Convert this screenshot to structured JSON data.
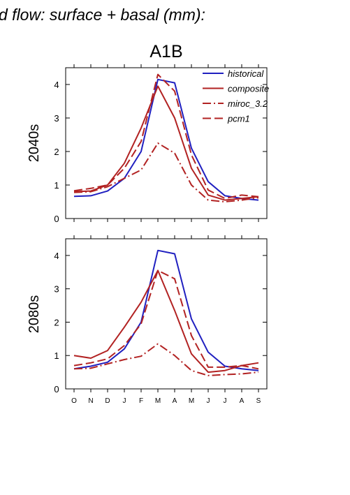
{
  "figure": {
    "suptitle": "d flow: surface + basal (mm):",
    "scenario": "A1B"
  },
  "colors": {
    "historical": "#2020c0",
    "model": "#b22222",
    "axis": "#000000"
  },
  "chart_data": [
    {
      "type": "line",
      "title": "A1B",
      "ylabel": "2040s",
      "ylim": [
        0,
        4.5
      ],
      "yticks": [
        "0",
        "1",
        "2",
        "3",
        "4"
      ],
      "categories": [
        "O",
        "N",
        "D",
        "J",
        "F",
        "M",
        "A",
        "M",
        "J",
        "J",
        "A",
        "S"
      ],
      "legend_position": "top-right",
      "series": [
        {
          "name": "historical",
          "style": "solid",
          "color": "#2020c0",
          "values": [
            0.66,
            0.68,
            0.82,
            1.2,
            2.0,
            4.15,
            4.05,
            2.1,
            1.1,
            0.68,
            0.6,
            0.55
          ]
        },
        {
          "name": "composite",
          "style": "solid",
          "color": "#b22222",
          "values": [
            0.8,
            0.82,
            1.0,
            1.65,
            2.7,
            3.95,
            3.0,
            1.5,
            0.7,
            0.55,
            0.6,
            0.65
          ]
        },
        {
          "name": "miroc_3.2",
          "style": "dashdot",
          "color": "#b22222",
          "values": [
            0.78,
            0.8,
            0.95,
            1.2,
            1.45,
            2.25,
            1.95,
            1.0,
            0.55,
            0.5,
            0.55,
            0.62
          ]
        },
        {
          "name": "pcm1",
          "style": "dashed",
          "color": "#b22222",
          "values": [
            0.83,
            0.9,
            1.0,
            1.5,
            2.3,
            4.3,
            3.8,
            1.9,
            0.85,
            0.6,
            0.7,
            0.65
          ]
        }
      ]
    },
    {
      "type": "line",
      "title": "",
      "ylabel": "2080s",
      "ylim": [
        0,
        4.5
      ],
      "yticks": [
        "0",
        "1",
        "2",
        "3",
        "4"
      ],
      "categories": [
        "O",
        "N",
        "D",
        "J",
        "F",
        "M",
        "A",
        "M",
        "J",
        "J",
        "A",
        "S"
      ],
      "series": [
        {
          "name": "historical",
          "style": "solid",
          "color": "#2020c0",
          "values": [
            0.6,
            0.68,
            0.8,
            1.2,
            2.0,
            4.15,
            4.05,
            2.1,
            1.1,
            0.68,
            0.6,
            0.55
          ]
        },
        {
          "name": "composite",
          "style": "solid",
          "color": "#b22222",
          "values": [
            1.0,
            0.92,
            1.15,
            1.85,
            2.6,
            3.55,
            2.35,
            1.05,
            0.5,
            0.55,
            0.7,
            0.78
          ]
        },
        {
          "name": "miroc_3.2",
          "style": "dashdot",
          "color": "#b22222",
          "values": [
            0.6,
            0.62,
            0.75,
            0.88,
            0.98,
            1.35,
            1.0,
            0.55,
            0.4,
            0.43,
            0.45,
            0.5
          ]
        },
        {
          "name": "pcm1",
          "style": "dashed",
          "color": "#b22222",
          "values": [
            0.7,
            0.78,
            0.9,
            1.3,
            1.95,
            3.55,
            3.3,
            1.6,
            0.65,
            0.65,
            0.7,
            0.6
          ]
        }
      ]
    }
  ]
}
